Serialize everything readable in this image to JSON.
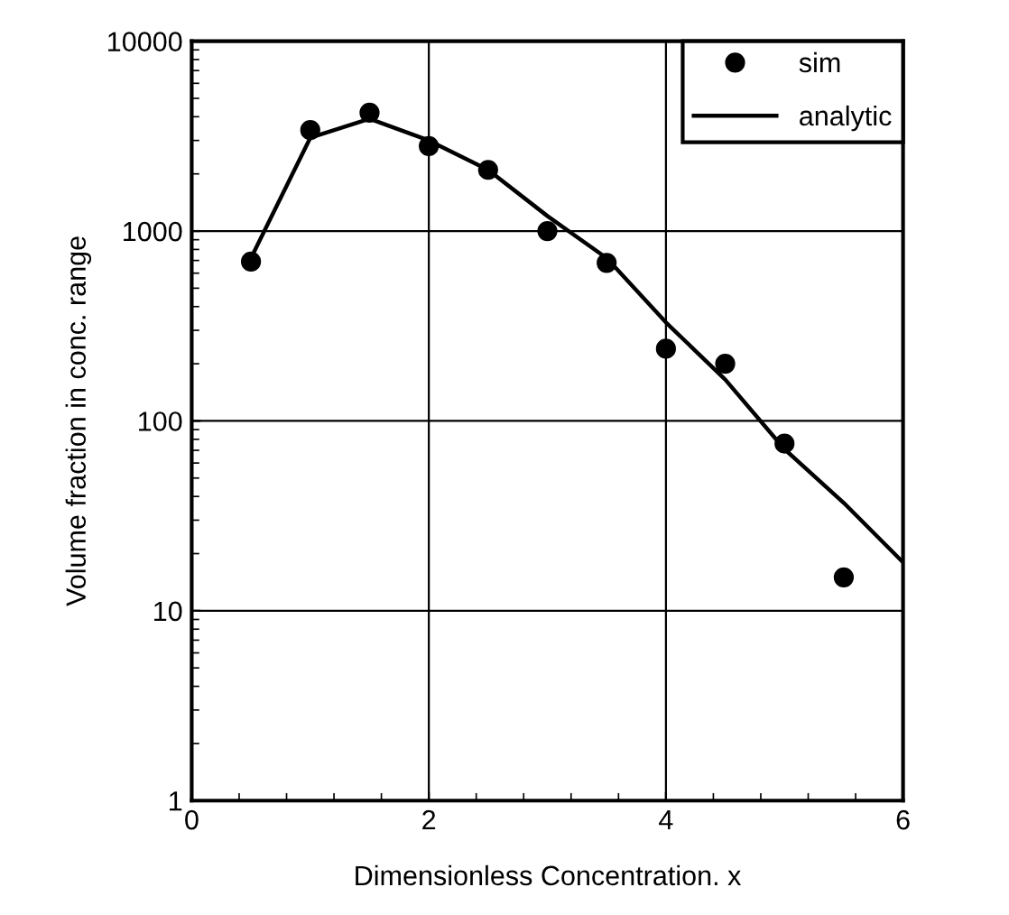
{
  "chart_data": {
    "type": "scatter",
    "xlabel": "Dimensionless Concentration. x",
    "ylabel": "Volume fraction in conc. range",
    "log": "y",
    "xlim": [
      0,
      6
    ],
    "ylim": [
      1,
      10000
    ],
    "xticks": [
      0,
      2,
      4,
      6
    ],
    "yticks": [
      1,
      10,
      100,
      1000,
      10000
    ],
    "grid": true,
    "legend": "top right",
    "series": [
      {
        "name": "sim",
        "marker": "circle",
        "color": "#000000",
        "x": [
          0.5,
          1,
          1.5,
          2,
          2.5,
          3,
          3.5,
          4,
          4.5,
          5,
          5.5
        ],
        "values": [
          690,
          3400,
          4200,
          2800,
          2100,
          1000,
          680,
          240,
          200,
          76,
          15
        ]
      },
      {
        "name": "analytic",
        "type": "line",
        "line_style": "solid",
        "color": "#000000",
        "x": [
          0.5,
          1,
          1.5,
          2,
          2.5,
          3,
          3.5,
          4,
          4.5,
          5,
          5.5,
          6
        ],
        "values": [
          720,
          3100,
          3900,
          3000,
          2100,
          1200,
          720,
          330,
          165,
          71,
          37,
          18
        ]
      }
    ]
  }
}
